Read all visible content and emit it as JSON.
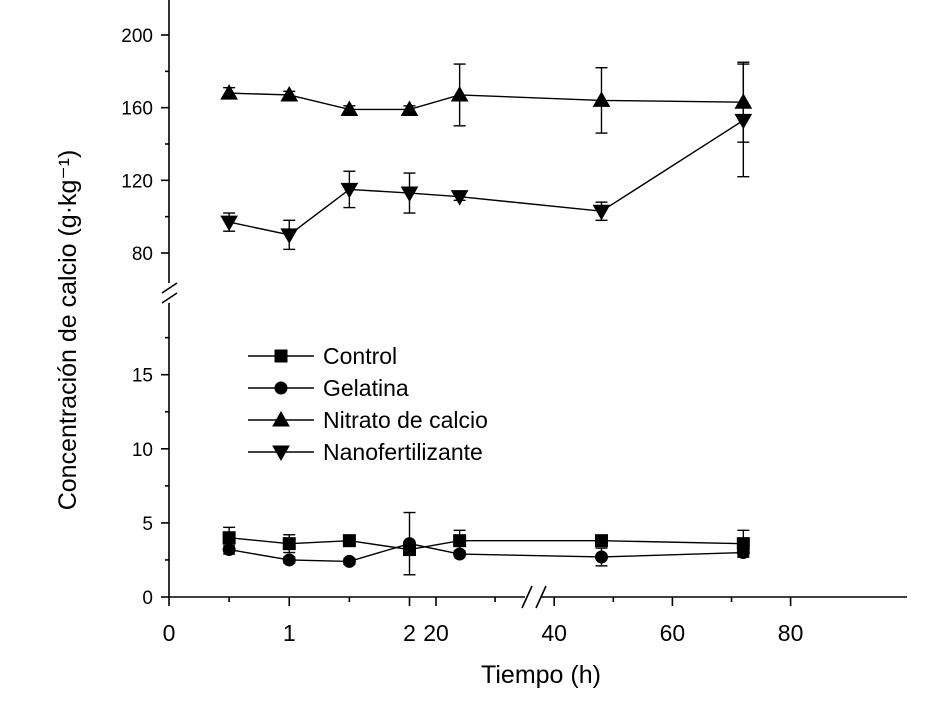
{
  "chart_data": {
    "type": "line",
    "xlabel": "Tiempo (h)",
    "ylabel": "Concentración de calcio (g·kg⁻¹)",
    "x_ticks_left": [
      "0",
      "1",
      "2"
    ],
    "x_ticks_right": [
      "20",
      "40",
      "60",
      "80"
    ],
    "y_ticks_upper": [
      "80",
      "120",
      "160",
      "200"
    ],
    "y_ticks_lower": [
      "0",
      "5",
      "10",
      "15"
    ],
    "x_axis_break_between": [
      2,
      20
    ],
    "y_axis_break_between": [
      19,
      75
    ],
    "legend_position": "center-left",
    "x": [
      0.5,
      1,
      1.5,
      2,
      24,
      48,
      72
    ],
    "series": [
      {
        "name": "Control",
        "marker": "square",
        "values": [
          4.0,
          3.6,
          3.8,
          3.2,
          3.8,
          3.8,
          3.6
        ],
        "error": [
          0.7,
          0.6,
          0,
          0,
          0.7,
          0,
          0.9
        ]
      },
      {
        "name": "Gelatina",
        "marker": "circle",
        "values": [
          3.2,
          2.5,
          2.4,
          3.6,
          2.9,
          2.7,
          3.0
        ],
        "error": [
          0.3,
          0.2,
          0.2,
          2.1,
          0,
          0.6,
          0.3
        ]
      },
      {
        "name": "Nitrato de calcio",
        "marker": "triangle-up",
        "values": [
          168,
          167,
          159,
          159,
          167,
          164,
          163
        ],
        "error": [
          3,
          2,
          2,
          2,
          17,
          18,
          22
        ]
      },
      {
        "name": "Nanofertilizante",
        "marker": "triangle-down",
        "values": [
          97,
          90,
          115,
          113,
          111,
          103,
          153
        ],
        "error": [
          5,
          8,
          10,
          11,
          2,
          5,
          31
        ]
      }
    ]
  }
}
